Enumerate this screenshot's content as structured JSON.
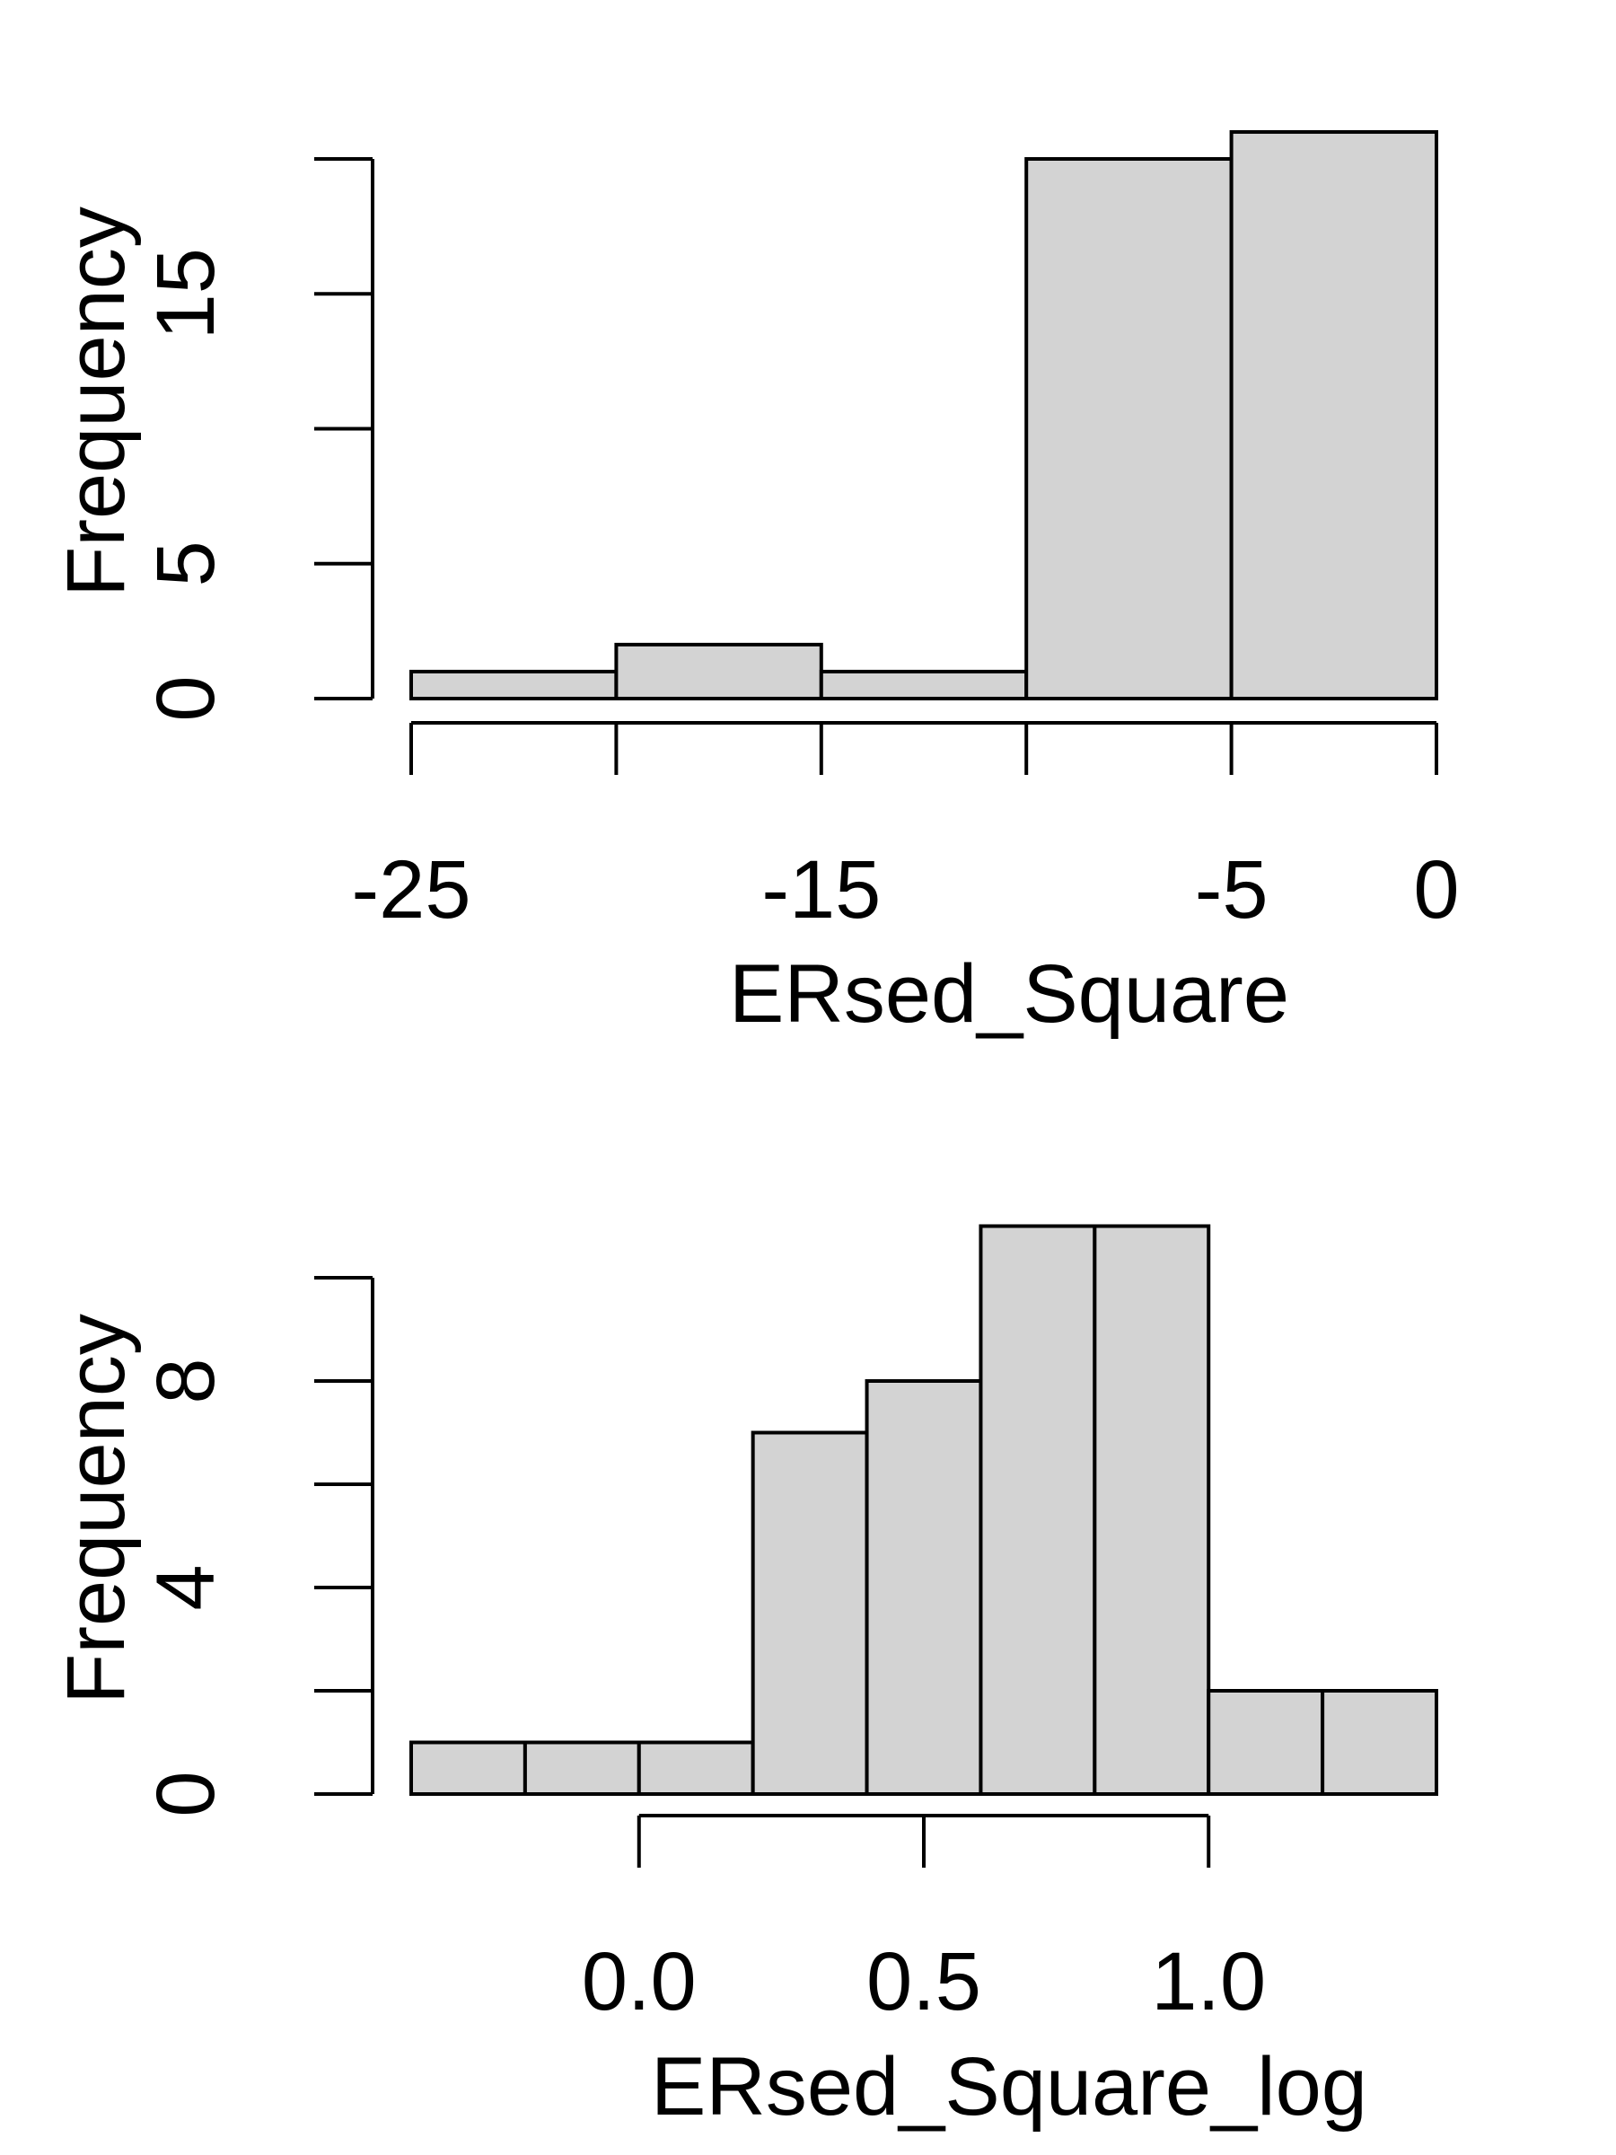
{
  "chart_data": [
    {
      "type": "bar",
      "histogram": true,
      "bin_edges": [
        -25,
        -20,
        -15,
        -10,
        -5,
        0
      ],
      "values": [
        1,
        2,
        1,
        20,
        21
      ],
      "xlabel": "ERsed_Square",
      "ylabel": "Frequency",
      "x_ticks": [
        -25,
        -20,
        -15,
        -10,
        -5,
        0
      ],
      "x_tick_labels": [
        "-25",
        "-15",
        "-5",
        "0"
      ],
      "y_ticks": [
        0,
        5,
        10,
        15,
        20
      ],
      "y_tick_labels": [
        "0",
        "5",
        "15"
      ],
      "xlim": [
        -25,
        0
      ],
      "ylim": [
        0,
        21
      ],
      "bar_color": "#d3d3d3"
    },
    {
      "type": "bar",
      "histogram": true,
      "bin_edges": [
        -0.4,
        -0.2,
        0.0,
        0.2,
        0.4,
        0.6,
        0.8,
        1.0,
        1.2,
        1.4
      ],
      "values": [
        1,
        1,
        1,
        7,
        8,
        11,
        11,
        2,
        2
      ],
      "xlabel": "ERsed_Square_log",
      "ylabel": "Frequency",
      "x_ticks": [
        0.0,
        0.5,
        1.0
      ],
      "x_tick_labels": [
        "0.0",
        "0.5",
        "1.0"
      ],
      "y_ticks": [
        0,
        2,
        4,
        6,
        8,
        10
      ],
      "y_tick_labels": [
        "0",
        "4",
        "8"
      ],
      "xlim": [
        -0.4,
        1.4
      ],
      "ylim": [
        0,
        11
      ],
      "bar_color": "#d3d3d3"
    }
  ]
}
